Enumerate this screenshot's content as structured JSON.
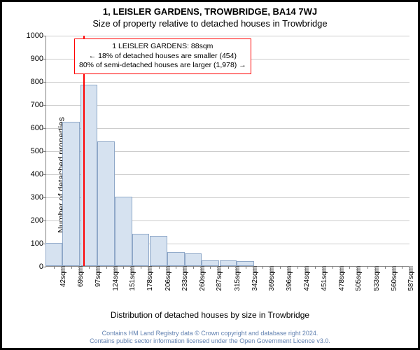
{
  "title_line1": "1, LEISLER GARDENS, TROWBRIDGE, BA14 7WJ",
  "title_line2": "Size of property relative to detached houses in Trowbridge",
  "ylabel": "Number of detached properties",
  "xlabel": "Distribution of detached houses by size in Trowbridge",
  "chart": {
    "type": "histogram",
    "background_color": "#ffffff",
    "grid_color": "#cccccc",
    "axis_color": "#808080",
    "bar_fill": "#d6e2f0",
    "bar_border": "#8fa8c8",
    "marker_color": "#ff0000",
    "marker_x": 88,
    "xlim": [
      30,
      600
    ],
    "ylim": [
      0,
      1000
    ],
    "ytick_step": 100,
    "bins": [
      {
        "x": 42,
        "count": 100
      },
      {
        "x": 69,
        "count": 625
      },
      {
        "x": 97,
        "count": 785
      },
      {
        "x": 124,
        "count": 540
      },
      {
        "x": 151,
        "count": 300
      },
      {
        "x": 178,
        "count": 140
      },
      {
        "x": 206,
        "count": 130
      },
      {
        "x": 233,
        "count": 60
      },
      {
        "x": 260,
        "count": 55
      },
      {
        "x": 287,
        "count": 25
      },
      {
        "x": 315,
        "count": 25
      },
      {
        "x": 342,
        "count": 20
      },
      {
        "x": 369,
        "count": 0
      },
      {
        "x": 396,
        "count": 0
      },
      {
        "x": 424,
        "count": 0
      },
      {
        "x": 451,
        "count": 0
      },
      {
        "x": 478,
        "count": 0
      },
      {
        "x": 505,
        "count": 0
      },
      {
        "x": 533,
        "count": 0
      },
      {
        "x": 560,
        "count": 0
      },
      {
        "x": 587,
        "count": 0
      }
    ],
    "xticks": [
      42,
      69,
      97,
      124,
      151,
      178,
      206,
      233,
      260,
      287,
      315,
      342,
      369,
      396,
      424,
      451,
      478,
      505,
      533,
      560,
      587
    ],
    "xtick_suffix": "sqm"
  },
  "annotation": {
    "border_color": "#ff0000",
    "lines": [
      "1 LEISLER GARDENS: 88sqm",
      "← 18% of detached houses are smaller (454)",
      "80% of semi-detached houses are larger (1,978) →"
    ]
  },
  "footer": {
    "color": "#6080b0",
    "line1": "Contains HM Land Registry data © Crown copyright and database right 2024.",
    "line2": "Contains public sector information licensed under the Open Government Licence v3.0."
  }
}
